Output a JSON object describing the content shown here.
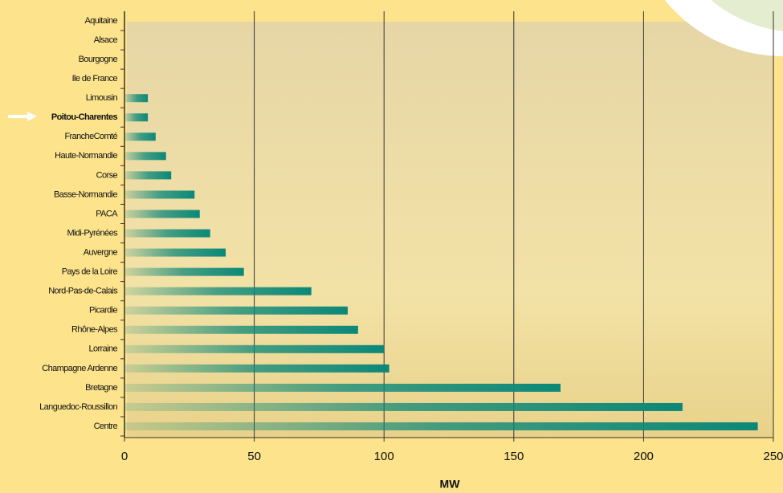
{
  "chart_data": {
    "type": "bar",
    "orientation": "horizontal",
    "x_label": "MW",
    "categories": [
      "Aquitaine",
      "Alsace",
      "Bourgogne",
      "Ile de France",
      "Limousin",
      "Poitou-Charentes",
      "FrancheComté",
      "Haute-Normandie",
      "Corse",
      "Basse-Normandie",
      "PACA",
      "Midi-Pyrénées",
      "Auvergne",
      "Pays de la Loire",
      "Nord-Pas-de-Calais",
      "Picardie",
      "Rhône-Alpes",
      "Lorraine",
      "Champagne Ardenne",
      "Bretagne",
      "Languedoc-Roussillon",
      "Centre"
    ],
    "values": [
      0,
      0,
      0,
      0,
      9,
      9,
      12,
      16,
      18,
      27,
      29,
      33,
      39,
      46,
      72,
      86,
      90,
      100,
      102,
      168,
      215,
      244
    ],
    "color": "#0b8878",
    "highlight": 5,
    "xlim": [
      0,
      250
    ],
    "xticks": [
      0,
      50,
      100,
      150,
      200,
      250
    ],
    "grid": true
  }
}
